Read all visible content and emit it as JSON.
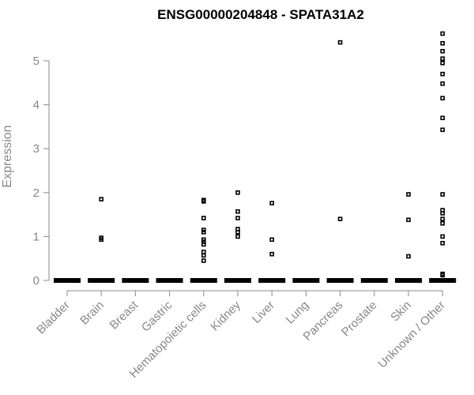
{
  "chart_data": {
    "type": "scatter",
    "title": "ENSG00000204848 - SPATA31A2",
    "xlabel": "",
    "ylabel": "Expression",
    "ylim": [
      0,
      5.6
    ],
    "yticks": [
      0,
      1,
      2,
      3,
      4,
      5
    ],
    "categories": [
      "Bladder",
      "Brain",
      "Breast",
      "Gastric",
      "Hematopoietic cells",
      "Kidney",
      "Liver",
      "Lung",
      "Pancreas",
      "Prostate",
      "Skin",
      "Unknown / Other"
    ],
    "values": [
      [
        0
      ],
      [
        0,
        0.93,
        0.97,
        1.85
      ],
      [
        0
      ],
      [
        0
      ],
      [
        0,
        0.45,
        0.57,
        0.65,
        0.82,
        0.88,
        0.93,
        1.1,
        1.15,
        1.42,
        1.8,
        1.83
      ],
      [
        0,
        1.0,
        1.1,
        1.17,
        1.42,
        1.57,
        2.0
      ],
      [
        0,
        0.6,
        0.93,
        1.76
      ],
      [
        0
      ],
      [
        0,
        1.4,
        5.42
      ],
      [
        0
      ],
      [
        0,
        0.55,
        1.38,
        1.96
      ],
      [
        0,
        0.12,
        0.15,
        0.85,
        1.0,
        1.3,
        1.4,
        1.53,
        1.6,
        1.96,
        3.43,
        3.7,
        4.15,
        4.48,
        4.7,
        4.95,
        5.05,
        5.22,
        5.4,
        5.62
      ]
    ]
  }
}
